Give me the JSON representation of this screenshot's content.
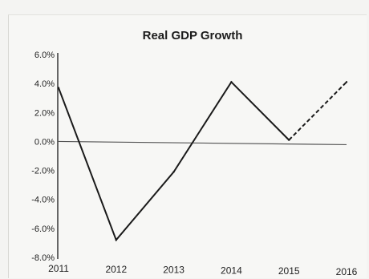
{
  "chart_data": {
    "type": "line",
    "title": "Real GDP Growth",
    "xlabel": "",
    "ylabel": "",
    "x": [
      "2011",
      "2012",
      "2013",
      "2014",
      "2015",
      "2016"
    ],
    "series": [
      {
        "values": [
          3.7,
          -6.8,
          -2.1,
          4.1,
          0.1,
          4.1
        ],
        "projected_from_index": 4
      }
    ],
    "yticks": [
      "6.0%",
      "4.0%",
      "2.0%",
      "0.0%",
      "-2.0%",
      "-4.0%",
      "-6.0%",
      "-8.0%"
    ],
    "ylim": [
      -8,
      6
    ],
    "zero_line": true,
    "grid": false,
    "colors": {
      "line": "#1a1a1a",
      "zero_line": "#555555",
      "axis": "#1a1a1a"
    }
  }
}
